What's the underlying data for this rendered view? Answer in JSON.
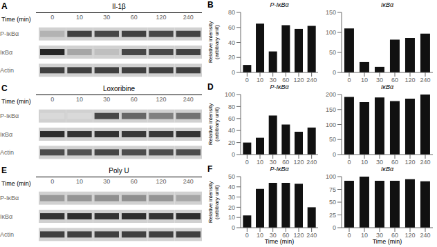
{
  "chart_data": [
    {
      "type": "heatmap",
      "title": "Il-1β",
      "annotations": [
        "A"
      ],
      "x_label": "Time (min)",
      "categories": [
        "0",
        "10",
        "30",
        "60",
        "120",
        "240"
      ],
      "rows": [
        "P-IκBα",
        "IκBα",
        "Actin"
      ],
      "cells": [
        [
          0.3,
          0.75,
          0.72,
          0.75,
          0.72,
          0.74
        ],
        [
          0.85,
          0.35,
          0.25,
          0.72,
          0.72,
          0.74
        ],
        [
          0.75,
          0.75,
          0.75,
          0.75,
          0.75,
          0.75
        ]
      ]
    },
    {
      "type": "bar",
      "title": "P-IκBα",
      "annotations": [
        "B"
      ],
      "y_label": "Relative intensity\n(arbitrary unit)",
      "categories": [
        "0",
        "10",
        "30",
        "60",
        "120",
        "240"
      ],
      "values": [
        10,
        65,
        28,
        63,
        58,
        62
      ],
      "color": "#111111",
      "ylim": [
        0,
        80
      ],
      "yticks": [
        0,
        20,
        40,
        60,
        80
      ]
    },
    {
      "type": "bar",
      "title": "IκBα",
      "categories": [
        "0",
        "10",
        "30",
        "60",
        "120",
        "240"
      ],
      "values": [
        110,
        26,
        14,
        82,
        86,
        97
      ],
      "color": "#111111",
      "ylim": [
        0,
        150
      ],
      "yticks": [
        0,
        50,
        100,
        150
      ]
    },
    {
      "type": "heatmap",
      "title": "Loxoribine",
      "annotations": [
        "C"
      ],
      "x_label": "Time (min)",
      "categories": [
        "0",
        "10",
        "30",
        "60",
        "120",
        "240"
      ],
      "rows": [
        "P-IκBα",
        "IκBα",
        "Actin"
      ],
      "cells": [
        [
          0.15,
          0.15,
          0.72,
          0.6,
          0.5,
          0.55
        ],
        [
          0.82,
          0.8,
          0.8,
          0.78,
          0.78,
          0.8
        ],
        [
          0.7,
          0.68,
          0.72,
          0.7,
          0.7,
          0.7
        ]
      ]
    },
    {
      "type": "bar",
      "title": "P-IκBα",
      "annotations": [
        "D"
      ],
      "y_label": "Relative intensity\n(arbitrary unit)",
      "categories": [
        "0",
        "10",
        "30",
        "60",
        "120",
        "240"
      ],
      "values": [
        20,
        28,
        65,
        50,
        38,
        45
      ],
      "color": "#111111",
      "ylim": [
        0,
        100
      ],
      "yticks": [
        0,
        20,
        40,
        60,
        80,
        100
      ]
    },
    {
      "type": "bar",
      "title": "IκBα",
      "categories": [
        "0",
        "10",
        "30",
        "60",
        "120",
        "240"
      ],
      "values": [
        192,
        175,
        190,
        178,
        186,
        200
      ],
      "color": "#111111",
      "ylim": [
        0,
        200
      ],
      "yticks": [
        0,
        50,
        100,
        150,
        200
      ]
    },
    {
      "type": "heatmap",
      "title": "Poly U",
      "annotations": [
        "E"
      ],
      "x_label": "Time (min)",
      "categories": [
        "0",
        "10",
        "30",
        "60",
        "120",
        "240"
      ],
      "rows": [
        "P-IκBα",
        "IκBα",
        "Actin"
      ],
      "cells": [
        [
          0.4,
          0.42,
          0.44,
          0.44,
          0.42,
          0.35
        ],
        [
          0.8,
          0.82,
          0.8,
          0.82,
          0.8,
          0.82
        ],
        [
          0.75,
          0.75,
          0.75,
          0.75,
          0.75,
          0.75
        ]
      ]
    },
    {
      "type": "bar",
      "title": "P-IκBα",
      "annotations": [
        "F"
      ],
      "y_label": "Relative intensity\n(arbitrary unit)",
      "x_label": "Time (min)",
      "categories": [
        "0",
        "10",
        "30",
        "60",
        "120",
        "240"
      ],
      "values": [
        12,
        38,
        44,
        44,
        43,
        20
      ],
      "color": "#111111",
      "ylim": [
        0,
        50
      ],
      "yticks": [
        0,
        10,
        20,
        30,
        40,
        50
      ]
    },
    {
      "type": "bar",
      "title": "IκBα",
      "x_label": "Time (min)",
      "categories": [
        "0",
        "10",
        "30",
        "60",
        "120",
        "240"
      ],
      "values": [
        92,
        100,
        92,
        92,
        95,
        91
      ],
      "color": "#111111",
      "ylim": [
        0,
        100
      ],
      "yticks": [
        0,
        25,
        50,
        75,
        100
      ]
    }
  ]
}
